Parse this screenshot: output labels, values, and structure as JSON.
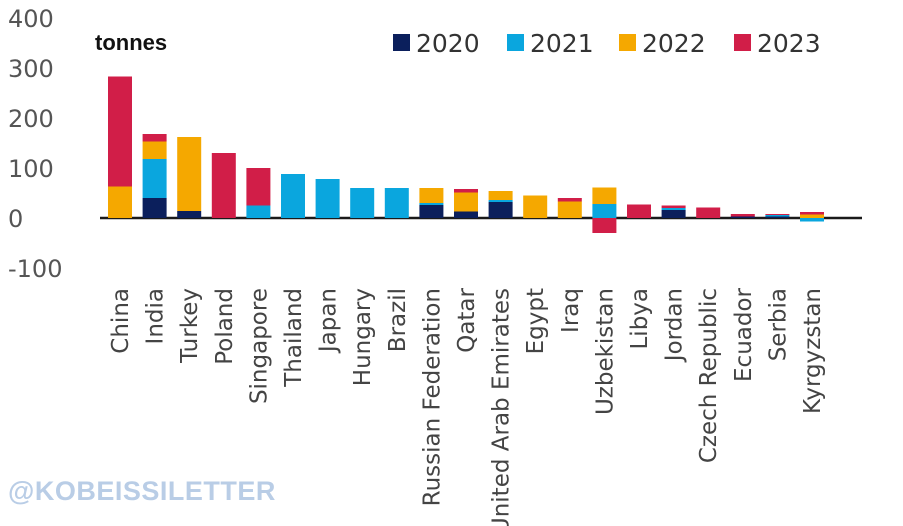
{
  "chart_data": {
    "type": "bar",
    "stacked": true,
    "unit_label": "tonnes",
    "categories": [
      "China",
      "India",
      "Turkey",
      "Poland",
      "Singapore",
      "Thailand",
      "Japan",
      "Hungary",
      "Brazil",
      "Russian Federation",
      "Qatar",
      "United Arab Emirates",
      "Egypt",
      "Iraq",
      "Uzbekistan",
      "Libya",
      "Jordan",
      "Czech Republic",
      "Ecuador",
      "Serbia",
      "Kyrgyzstan"
    ],
    "series": [
      {
        "name": "2020",
        "color": "#0b1f5c",
        "values": [
          0,
          40,
          14,
          0,
          0,
          0,
          0,
          0,
          0,
          26,
          13,
          32,
          0,
          0,
          0,
          0,
          16,
          0,
          3,
          3,
          0
        ]
      },
      {
        "name": "2021",
        "color": "#0aa6de",
        "values": [
          0,
          78,
          0,
          0,
          25,
          88,
          78,
          60,
          60,
          4,
          0,
          4,
          0,
          0,
          28,
          0,
          4,
          0,
          0,
          3,
          -7
        ]
      },
      {
        "name": "2022",
        "color": "#f5a800",
        "values": [
          63,
          35,
          148,
          0,
          0,
          0,
          0,
          0,
          0,
          30,
          38,
          18,
          45,
          33,
          33,
          0,
          0,
          0,
          0,
          0,
          7
        ]
      },
      {
        "name": "2023",
        "color": "#d11e48",
        "values": [
          220,
          15,
          0,
          130,
          75,
          0,
          0,
          0,
          0,
          0,
          7,
          0,
          0,
          7,
          -30,
          27,
          5,
          21,
          5,
          2,
          5
        ]
      }
    ],
    "yticks": [
      400,
      300,
      200,
      100,
      0,
      -100
    ],
    "ylim": [
      -100,
      400
    ],
    "legend_position": "top"
  },
  "watermark": "@KOBEISSILETTER"
}
